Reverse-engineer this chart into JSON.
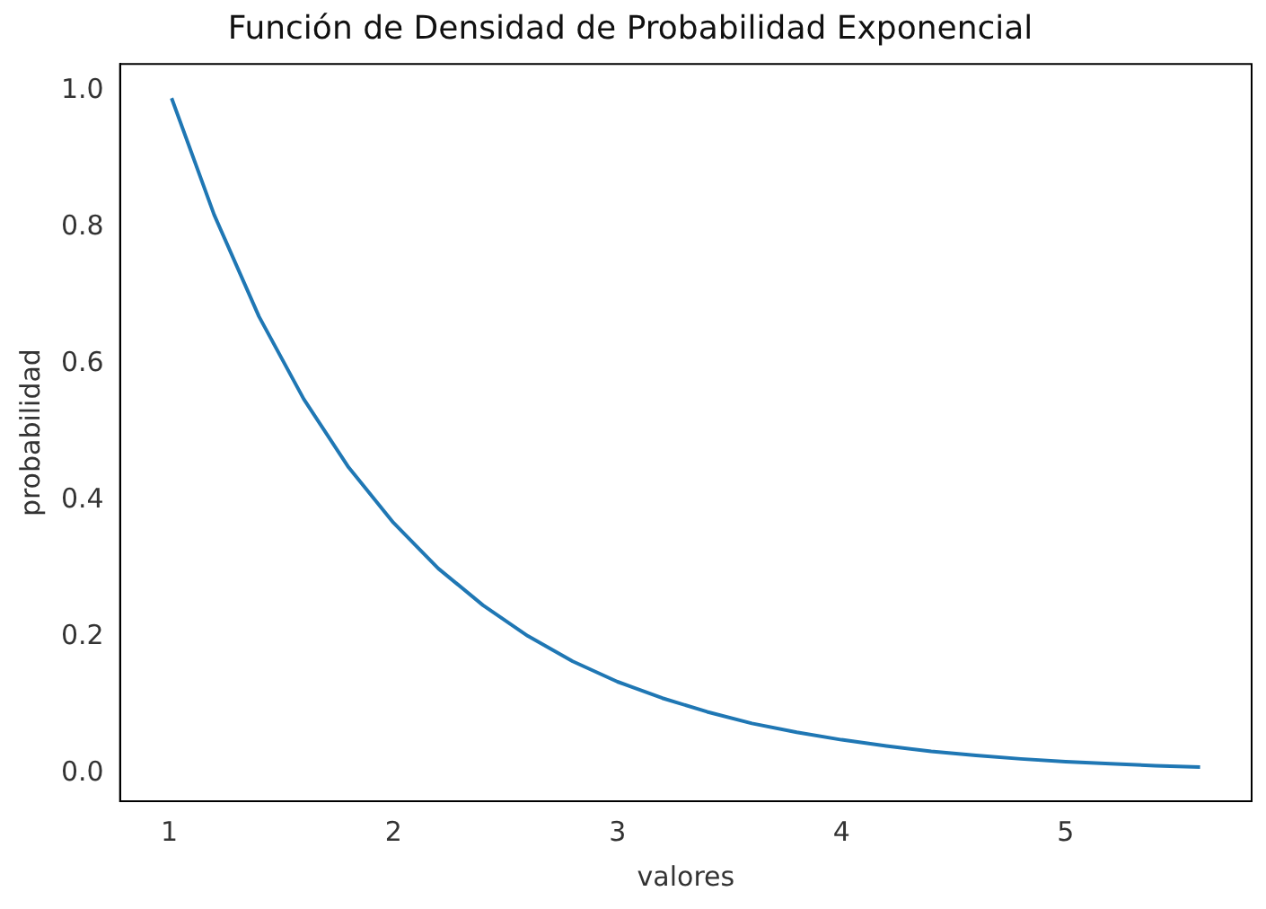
{
  "chart_data": {
    "type": "line",
    "title": "Función de Densidad de Probabilidad Exponencial",
    "xlabel": "valores",
    "ylabel": "probabilidad",
    "x": [
      1.01,
      1.2,
      1.4,
      1.6,
      1.8,
      2.0,
      2.2,
      2.4,
      2.6,
      2.8,
      3.0,
      3.2,
      3.4,
      3.6,
      3.8,
      4.0,
      4.2,
      4.4,
      4.6,
      4.8,
      5.0,
      5.2,
      5.4,
      5.6
    ],
    "series": [
      {
        "color": "#1f77b4",
        "values": [
          0.99,
          0.819,
          0.67,
          0.549,
          0.449,
          0.368,
          0.301,
          0.247,
          0.202,
          0.165,
          0.135,
          0.111,
          0.091,
          0.074,
          0.061,
          0.05,
          0.041,
          0.033,
          0.027,
          0.022,
          0.018,
          0.015,
          0.012,
          0.01
        ]
      }
    ],
    "xlim": [
      0.78,
      5.83
    ],
    "xticks": [
      1,
      2,
      3,
      4,
      5
    ],
    "ylim": [
      -0.04,
      1.04
    ],
    "yticks": [
      {
        "value": 0,
        "label": "0.0"
      },
      {
        "value": 0.2,
        "label": "0.2"
      },
      {
        "value": 0.4,
        "label": "0.4"
      },
      {
        "value": 0.6,
        "label": "0.6"
      },
      {
        "value": 0.8,
        "label": "0.8"
      },
      {
        "value": 1,
        "label": "1.0"
      }
    ],
    "grid": false,
    "legend": false,
    "marker": "none",
    "line_style": "solid"
  }
}
